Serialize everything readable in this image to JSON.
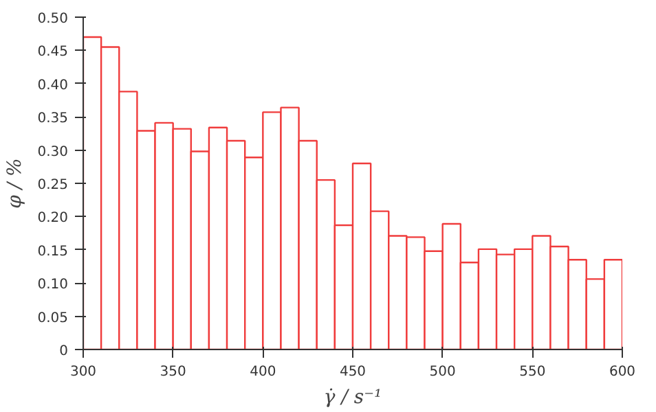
{
  "chart_data": {
    "type": "histogram",
    "xlabel": "γ̇ / s⁻¹",
    "ylabel": "φ / %",
    "bins": [
      300,
      310,
      320,
      330,
      340,
      350,
      360,
      370,
      380,
      390,
      400,
      410,
      420,
      430,
      440,
      450,
      460,
      470,
      480,
      490,
      500,
      510,
      520,
      530,
      540,
      550,
      560,
      570,
      580,
      590,
      600
    ],
    "values": [
      0.47,
      0.455,
      0.388,
      0.329,
      0.341,
      0.332,
      0.298,
      0.334,
      0.314,
      0.289,
      0.357,
      0.364,
      0.314,
      0.255,
      0.187,
      0.28,
      0.208,
      0.171,
      0.169,
      0.148,
      0.189,
      0.131,
      0.151,
      0.143,
      0.151,
      0.171,
      0.155,
      0.135,
      0.106,
      0.135
    ],
    "color": "#f03c3c",
    "xlim": [
      300,
      600
    ],
    "xticks": [
      300,
      350,
      400,
      450,
      500,
      550,
      600
    ],
    "ylim": [
      0,
      0.5
    ],
    "yticks": [
      0,
      0.05,
      {
        "value": 0.1,
        "label": "0.10"
      },
      0.15,
      {
        "value": 0.2,
        "label": "0.20"
      },
      0.25,
      {
        "value": 0.3,
        "label": "0.30"
      },
      0.35,
      {
        "value": 0.4,
        "label": "0.40"
      },
      0.45,
      {
        "value": 0.5,
        "label": "0.50"
      }
    ],
    "grid": false
  }
}
